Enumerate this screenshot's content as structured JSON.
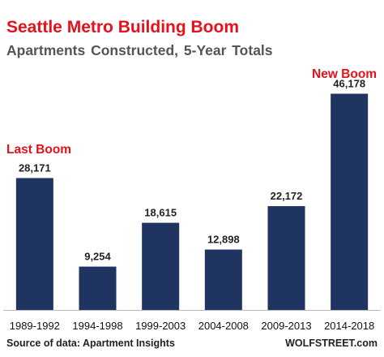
{
  "chart_data": {
    "type": "bar",
    "title": "Seattle Metro Building Boom",
    "subtitle": "Apartments Constructed,   5-Year Totals",
    "categories": [
      "1989-1992",
      "1994-1998",
      "1999-2003",
      "2004-2008",
      "2009-2013",
      "2014-2018"
    ],
    "values": [
      28171,
      9254,
      18615,
      12898,
      22172,
      46178
    ],
    "value_labels": [
      "28,171",
      "9,254",
      "18,615",
      "12,898",
      "22,172",
      "46,178"
    ],
    "annotations": [
      {
        "text": "Last Boom",
        "category": "1989-1992"
      },
      {
        "text": "New Boom",
        "category": "2014-2018"
      }
    ],
    "source": "Source of data: Apartment Insights",
    "brand": "WOLFSTREET.com",
    "ylim": [
      0,
      48000
    ],
    "grid": false,
    "bar_color": "#1f3461",
    "accent_color": "#e8101a"
  }
}
